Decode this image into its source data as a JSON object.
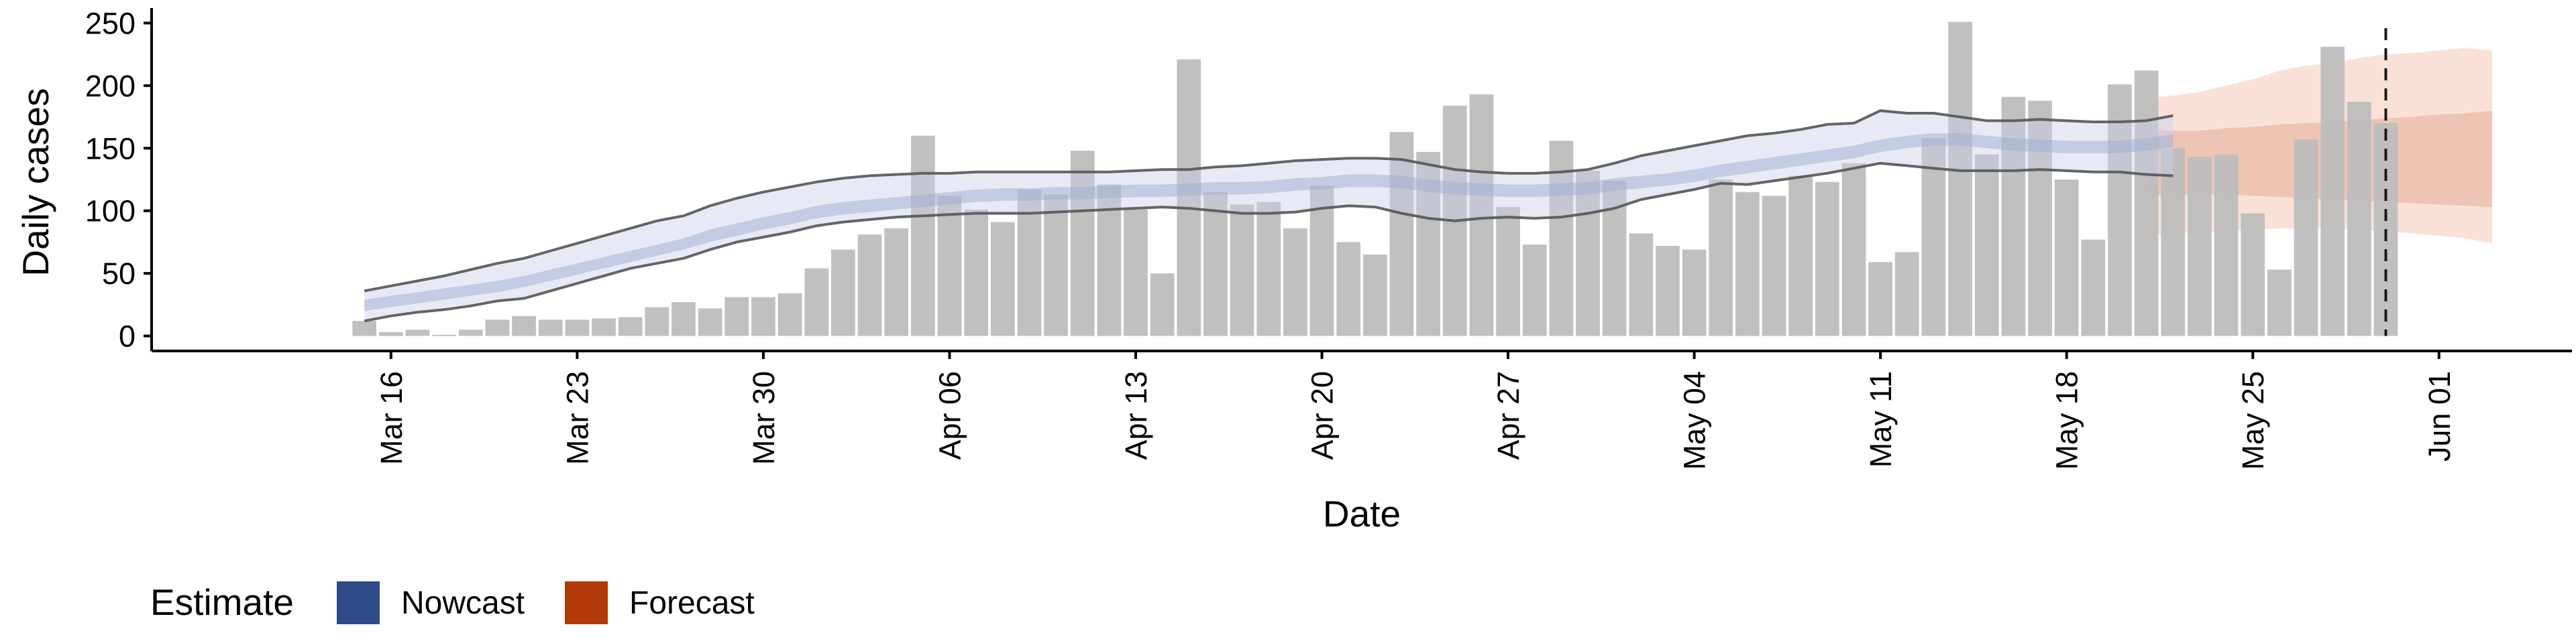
{
  "chart_data": {
    "type": "bar",
    "xlabel": "Date",
    "ylabel": "Daily cases",
    "ylim": [
      -12,
      262
    ],
    "yticks": [
      0,
      50,
      100,
      150,
      200,
      250
    ],
    "xlim": [
      "2020-03-07",
      "2020-06-06"
    ],
    "xticks": [
      {
        "date": "2020-03-16",
        "label": "Mar 16"
      },
      {
        "date": "2020-03-23",
        "label": "Mar 23"
      },
      {
        "date": "2020-03-30",
        "label": "Mar 30"
      },
      {
        "date": "2020-04-06",
        "label": "Apr 06"
      },
      {
        "date": "2020-04-13",
        "label": "Apr 13"
      },
      {
        "date": "2020-04-20",
        "label": "Apr 20"
      },
      {
        "date": "2020-04-27",
        "label": "Apr 27"
      },
      {
        "date": "2020-05-04",
        "label": "May 04"
      },
      {
        "date": "2020-05-11",
        "label": "May 11"
      },
      {
        "date": "2020-05-18",
        "label": "May 18"
      },
      {
        "date": "2020-05-25",
        "label": "May 25"
      },
      {
        "date": "2020-06-01",
        "label": "Jun 01"
      }
    ],
    "grid": false,
    "legend": {
      "title": "Estimate",
      "position": "bottom-left",
      "items": [
        {
          "label": "Nowcast",
          "color": "#2e4a87"
        },
        {
          "label": "Forecast",
          "color": "#b23a0a"
        }
      ]
    },
    "bar_color": "#bdbdbd",
    "dashed_line_date": "2020-05-30",
    "bars": {
      "start_date": "2020-03-15",
      "values": [
        12,
        3,
        5,
        1,
        5,
        13,
        16,
        13,
        13,
        14,
        15,
        23,
        27,
        22,
        31,
        31,
        34,
        54,
        69,
        81,
        86,
        160,
        112,
        101,
        91,
        117,
        113,
        148,
        121,
        101,
        50,
        221,
        115,
        105,
        107,
        86,
        120,
        75,
        65,
        163,
        147,
        184,
        193,
        103,
        73,
        156,
        132,
        124,
        82,
        72,
        69,
        125,
        115,
        112,
        128,
        123,
        138,
        59,
        67,
        158,
        251,
        145,
        191,
        188,
        125,
        77,
        201,
        212,
        150,
        143,
        145,
        98,
        53,
        157,
        231,
        187,
        170
      ]
    },
    "nowcast": {
      "start_date": "2020-03-15",
      "median": [
        24,
        27,
        30,
        33,
        36,
        39,
        43,
        48,
        53,
        58,
        63,
        68,
        73,
        80,
        85,
        90,
        94,
        99,
        102,
        104,
        106,
        108,
        110,
        112,
        113,
        113,
        114,
        114,
        115,
        116,
        116,
        117,
        118,
        118,
        119,
        121,
        122,
        124,
        124,
        123,
        120,
        118,
        117,
        116,
        116,
        117,
        118,
        121,
        123,
        125,
        128,
        132,
        135,
        138,
        141,
        144,
        147,
        152,
        155,
        157,
        157,
        155,
        153,
        152,
        151,
        151,
        151,
        153,
        156
      ],
      "inner_lower": [
        20,
        23,
        26,
        29,
        32,
        35,
        39,
        44,
        49,
        54,
        59,
        64,
        69,
        75,
        80,
        85,
        89,
        94,
        97,
        99,
        101,
        103,
        105,
        107,
        108,
        108,
        109,
        109,
        110,
        111,
        111,
        112,
        113,
        113,
        114,
        116,
        117,
        119,
        119,
        118,
        115,
        113,
        112,
        111,
        111,
        112,
        113,
        116,
        118,
        120,
        123,
        127,
        130,
        133,
        136,
        139,
        142,
        147,
        150,
        152,
        152,
        150,
        148,
        147,
        146,
        146,
        146,
        148,
        151
      ],
      "inner_upper": [
        29,
        32,
        35,
        38,
        41,
        44,
        48,
        53,
        58,
        63,
        68,
        73,
        78,
        85,
        90,
        95,
        99,
        104,
        107,
        109,
        111,
        113,
        115,
        117,
        118,
        118,
        119,
        119,
        120,
        121,
        121,
        122,
        123,
        123,
        124,
        126,
        127,
        129,
        129,
        128,
        125,
        123,
        122,
        121,
        121,
        122,
        123,
        126,
        128,
        130,
        133,
        137,
        140,
        143,
        146,
        149,
        152,
        157,
        160,
        162,
        162,
        160,
        158,
        157,
        156,
        156,
        156,
        158,
        161
      ],
      "lower": [
        12,
        16,
        19,
        21,
        24,
        28,
        30,
        36,
        42,
        48,
        54,
        58,
        62,
        69,
        75,
        79,
        83,
        88,
        91,
        93,
        95,
        96,
        97,
        98,
        98,
        98,
        99,
        100,
        101,
        102,
        103,
        102,
        100,
        98,
        98,
        99,
        102,
        104,
        103,
        98,
        94,
        92,
        94,
        95,
        94,
        95,
        98,
        102,
        109,
        113,
        117,
        122,
        121,
        124,
        127,
        130,
        134,
        138,
        136,
        134,
        132,
        132,
        132,
        133,
        132,
        131,
        131,
        129,
        128
      ],
      "upper": [
        36,
        40,
        44,
        48,
        53,
        58,
        62,
        68,
        74,
        80,
        86,
        92,
        96,
        104,
        110,
        115,
        119,
        123,
        126,
        128,
        129,
        130,
        130,
        131,
        131,
        131,
        131,
        131,
        131,
        132,
        133,
        133,
        135,
        136,
        138,
        140,
        141,
        142,
        142,
        141,
        137,
        133,
        131,
        130,
        130,
        131,
        133,
        138,
        144,
        148,
        152,
        156,
        160,
        162,
        165,
        169,
        170,
        180,
        178,
        178,
        175,
        172,
        172,
        173,
        172,
        171,
        171,
        172,
        176
      ]
    },
    "forecast": {
      "start_date": "2020-05-21",
      "median": [
        140,
        140,
        139,
        139,
        138,
        137,
        137,
        136,
        136,
        136,
        136,
        136,
        136,
        137
      ],
      "inner_lower": [
        112,
        113,
        113,
        113,
        112,
        111,
        110,
        109,
        108,
        107,
        106,
        105,
        104,
        103
      ],
      "inner_upper": [
        165,
        164,
        164,
        166,
        167,
        169,
        170,
        171,
        172,
        174,
        175,
        177,
        178,
        180
      ],
      "lower": [
        80,
        82,
        83,
        84,
        85,
        86,
        86,
        86,
        85,
        84,
        82,
        80,
        78,
        74
      ],
      "upper": [
        190,
        192,
        195,
        200,
        205,
        212,
        216,
        218,
        222,
        225,
        226,
        228,
        230,
        228
      ]
    }
  }
}
